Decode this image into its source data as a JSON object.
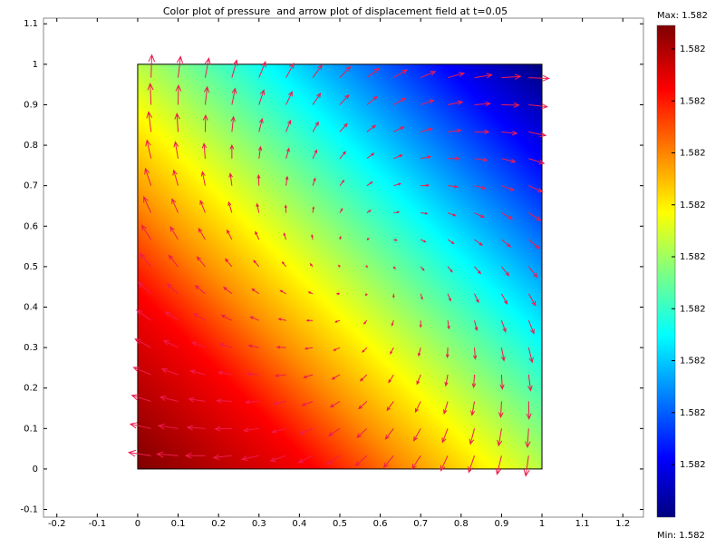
{
  "chart_data": {
    "type": "quiver",
    "title": "Color plot of pressure  and arrow plot of displacement field at t=0.05",
    "xlim": [
      -0.233,
      1.251
    ],
    "ylim": [
      -0.119,
      1.114
    ],
    "xticks": [
      -0.2,
      -0.1,
      0,
      0.1,
      0.2,
      0.3,
      0.4,
      0.5,
      0.6,
      0.7,
      0.8,
      0.9,
      1,
      1.1,
      1.2
    ],
    "yticks": [
      -0.1,
      0,
      0.1,
      0.2,
      0.3,
      0.4,
      0.5,
      0.6,
      0.7,
      0.8,
      0.9,
      1,
      1.1
    ],
    "field_xlim": [
      0,
      1
    ],
    "field_ylim": [
      0,
      1
    ],
    "arrow_color": "#ee1c4e",
    "x": [
      0.033,
      0.1,
      0.167,
      0.233,
      0.3,
      0.367,
      0.433,
      0.5,
      0.567,
      0.633,
      0.7,
      0.767,
      0.833,
      0.9,
      0.967
    ],
    "y": [
      0.033,
      0.1,
      0.167,
      0.233,
      0.3,
      0.367,
      0.433,
      0.5,
      0.567,
      0.633,
      0.7,
      0.767,
      0.833,
      0.9,
      0.967
    ],
    "u": [
      [
        -0.055,
        -0.052,
        -0.048,
        -0.045,
        -0.042,
        -0.038,
        -0.035,
        -0.031,
        -0.028,
        -0.024,
        -0.021,
        -0.017,
        -0.014,
        -0.011,
        -0.007
      ],
      [
        -0.051,
        -0.048,
        -0.044,
        -0.041,
        -0.037,
        -0.034,
        -0.031,
        -0.027,
        -0.024,
        -0.02,
        -0.017,
        -0.013,
        -0.01,
        -0.007,
        -0.003
      ],
      [
        -0.047,
        -0.044,
        -0.04,
        -0.037,
        -0.033,
        -0.03,
        -0.026,
        -0.023,
        -0.02,
        -0.016,
        -0.013,
        -0.009,
        -0.006,
        -0.002,
        0.001
      ],
      [
        -0.043,
        -0.04,
        -0.036,
        -0.033,
        -0.029,
        -0.026,
        -0.022,
        -0.019,
        -0.016,
        -0.012,
        -0.009,
        -0.005,
        -0.002,
        0.002,
        0.005
      ],
      [
        -0.039,
        -0.035,
        -0.032,
        -0.029,
        -0.025,
        -0.022,
        -0.018,
        -0.015,
        -0.011,
        -0.008,
        -0.005,
        -0.001,
        0.002,
        0.006,
        0.009
      ],
      [
        -0.035,
        -0.031,
        -0.028,
        -0.025,
        -0.021,
        -0.018,
        -0.014,
        -0.011,
        -0.007,
        -0.004,
        0,
        0.003,
        0.006,
        0.01,
        0.013
      ],
      [
        -0.031,
        -0.027,
        -0.024,
        -0.02,
        -0.017,
        -0.014,
        -0.01,
        -0.007,
        -0.003,
        0,
        0.004,
        0.007,
        0.01,
        0.014,
        0.017
      ],
      [
        -0.027,
        -0.023,
        -0.02,
        -0.016,
        -0.013,
        -0.009,
        -0.006,
        -0.003,
        0.001,
        0.004,
        0.008,
        0.011,
        0.015,
        0.018,
        0.021
      ],
      [
        -0.023,
        -0.019,
        -0.016,
        -0.012,
        -0.009,
        -0.005,
        -0.002,
        0.002,
        0.005,
        0.008,
        0.012,
        0.015,
        0.019,
        0.022,
        0.026
      ],
      [
        -0.018,
        -0.015,
        -0.012,
        -0.008,
        -0.005,
        -0.001,
        0.002,
        0.006,
        0.009,
        0.013,
        0.016,
        0.019,
        0.023,
        0.026,
        0.03
      ],
      [
        -0.014,
        -0.011,
        -0.007,
        -0.004,
        -0.001,
        0.003,
        0.006,
        0.01,
        0.013,
        0.017,
        0.02,
        0.024,
        0.027,
        0.03,
        0.034
      ],
      [
        -0.01,
        -0.007,
        -0.003,
        0,
        0.004,
        0.007,
        0.01,
        0.014,
        0.017,
        0.021,
        0.024,
        0.028,
        0.031,
        0.034,
        0.038
      ],
      [
        -0.006,
        -0.003,
        0.001,
        0.004,
        0.008,
        0.011,
        0.014,
        0.018,
        0.021,
        0.025,
        0.028,
        0.032,
        0.035,
        0.038,
        0.042
      ],
      [
        -0.002,
        0.001,
        0.005,
        0.008,
        0.012,
        0.015,
        0.019,
        0.022,
        0.025,
        0.029,
        0.032,
        0.036,
        0.039,
        0.043,
        0.046
      ],
      [
        0.002,
        0.006,
        0.009,
        0.012,
        0.016,
        0.019,
        0.023,
        0.026,
        0.03,
        0.033,
        0.036,
        0.04,
        0.043,
        0.047,
        0.05
      ]
    ],
    "v": [
      [
        0.008,
        0.004,
        0,
        -0.005,
        -0.009,
        -0.013,
        -0.017,
        -0.021,
        -0.025,
        -0.029,
        -0.033,
        -0.037,
        -0.041,
        -0.046,
        -0.05
      ],
      [
        0.011,
        0.007,
        0.003,
        -0.001,
        -0.005,
        -0.009,
        -0.013,
        -0.018,
        -0.022,
        -0.026,
        -0.03,
        -0.034,
        -0.038,
        -0.042,
        -0.046
      ],
      [
        0.015,
        0.011,
        0.006,
        0.002,
        -0.002,
        -0.006,
        -0.01,
        -0.014,
        -0.018,
        -0.022,
        -0.026,
        -0.03,
        -0.034,
        -0.039,
        -0.043
      ],
      [
        0.018,
        0.014,
        0.01,
        0.006,
        0.002,
        -0.003,
        -0.007,
        -0.011,
        -0.015,
        -0.019,
        -0.023,
        -0.027,
        -0.031,
        -0.035,
        -0.039
      ],
      [
        0.021,
        0.017,
        0.013,
        0.009,
        0.005,
        0.001,
        -0.003,
        -0.007,
        -0.011,
        -0.015,
        -0.02,
        -0.024,
        -0.028,
        -0.032,
        -0.036
      ],
      [
        0.025,
        0.021,
        0.017,
        0.013,
        0.009,
        0.004,
        0,
        -0.004,
        -0.008,
        -0.012,
        -0.016,
        -0.02,
        -0.024,
        -0.028,
        -0.032
      ],
      [
        0.028,
        0.024,
        0.02,
        0.016,
        0.012,
        0.008,
        0.004,
        0,
        -0.004,
        -0.009,
        -0.013,
        -0.017,
        -0.021,
        -0.025,
        -0.029
      ],
      [
        0.032,
        0.028,
        0.024,
        0.019,
        0.015,
        0.011,
        0.007,
        0.003,
        -0.001,
        -0.005,
        -0.009,
        -0.013,
        -0.017,
        -0.022,
        -0.026
      ],
      [
        0.035,
        0.031,
        0.027,
        0.023,
        0.019,
        0.015,
        0.011,
        0.007,
        0.002,
        -0.002,
        -0.006,
        -0.01,
        -0.014,
        -0.018,
        -0.022
      ],
      [
        0.039,
        0.034,
        0.03,
        0.026,
        0.022,
        0.018,
        0.014,
        0.01,
        0.006,
        0.002,
        -0.002,
        -0.007,
        -0.011,
        -0.015,
        -0.019
      ],
      [
        0.042,
        0.038,
        0.034,
        0.03,
        0.026,
        0.022,
        0.018,
        0.013,
        0.009,
        0.005,
        0.001,
        -0.003,
        -0.007,
        -0.011,
        -0.015
      ],
      [
        0.045,
        0.041,
        0.037,
        0.033,
        0.029,
        0.025,
        0.021,
        0.017,
        0.013,
        0.009,
        0.005,
        0,
        -0.004,
        -0.008,
        -0.012
      ],
      [
        0.049,
        0.045,
        0.041,
        0.037,
        0.032,
        0.028,
        0.024,
        0.02,
        0.016,
        0.012,
        0.008,
        0.004,
        0,
        -0.004,
        -0.009
      ],
      [
        0.052,
        0.048,
        0.044,
        0.04,
        0.036,
        0.032,
        0.028,
        0.024,
        0.02,
        0.016,
        0.011,
        0.007,
        0.003,
        -0.001,
        -0.005
      ],
      [
        0.056,
        0.052,
        0.048,
        0.043,
        0.039,
        0.035,
        0.031,
        0.027,
        0.023,
        0.019,
        0.015,
        0.011,
        0.007,
        0.003,
        -0.002
      ]
    ],
    "colorbar": {
      "max_label": "Max: 1.582",
      "min_label": "Min: 1.582",
      "ticks": [
        "1.582",
        "1.582",
        "1.582",
        "1.582",
        "1.582",
        "1.582",
        "1.582",
        "1.582",
        "1.582"
      ]
    }
  }
}
